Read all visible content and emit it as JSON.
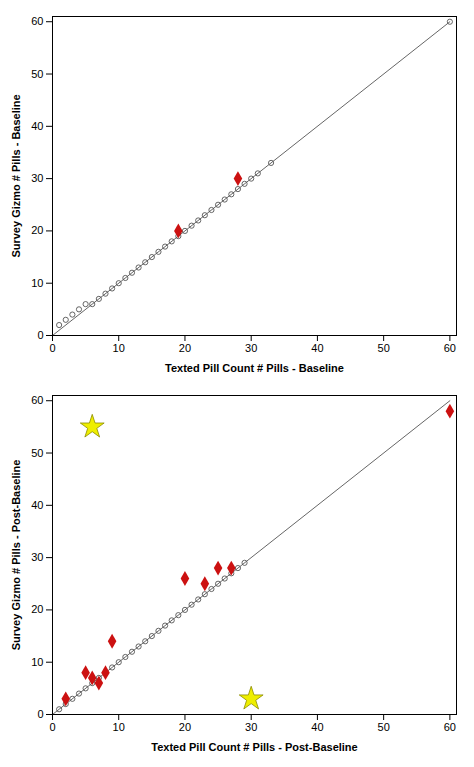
{
  "chart_data": [
    {
      "type": "scatter",
      "xlabel": "Texted Pill Count # Pills - Baseline",
      "ylabel": "Survey Gizmo # Pills - Baseline",
      "xlim": [
        0,
        61
      ],
      "ylim": [
        0,
        61
      ],
      "xticks": [
        0,
        10,
        20,
        30,
        40,
        50,
        60
      ],
      "yticks": [
        0,
        10,
        20,
        30,
        40,
        50,
        60
      ],
      "grid": false,
      "series": [
        {
          "type": "line",
          "color": "#666666",
          "x": [
            0,
            60
          ],
          "y": [
            0,
            60
          ]
        },
        {
          "type": "scatter",
          "marker": "circle",
          "color": "#555555",
          "x": [
            1,
            2,
            3,
            4,
            5,
            6,
            7,
            8,
            9,
            10,
            11,
            12,
            13,
            14,
            15,
            16,
            17,
            18,
            19,
            20,
            21,
            22,
            23,
            24,
            25,
            26,
            27,
            28,
            29,
            30,
            31,
            33,
            60
          ],
          "y": [
            2,
            3,
            4,
            5,
            6,
            6,
            7,
            8,
            9,
            10,
            11,
            12,
            13,
            14,
            15,
            16,
            17,
            18,
            19,
            20,
            21,
            22,
            23,
            24,
            25,
            26,
            27,
            28,
            29,
            30,
            31,
            33,
            60
          ]
        },
        {
          "type": "scatter",
          "marker": "diamond",
          "color": "#cc1111",
          "x": [
            19,
            28
          ],
          "y": [
            20,
            30
          ]
        }
      ]
    },
    {
      "type": "scatter",
      "xlabel": "Texted Pill Count # Pills - Post-Baseline",
      "ylabel": "Survey Gizmo # Pills - Post-Baseline",
      "xlim": [
        0,
        61
      ],
      "ylim": [
        0,
        61
      ],
      "xticks": [
        0,
        10,
        20,
        30,
        40,
        50,
        60
      ],
      "yticks": [
        0,
        10,
        20,
        30,
        40,
        50,
        60
      ],
      "grid": false,
      "series": [
        {
          "type": "line",
          "color": "#666666",
          "x": [
            0,
            60
          ],
          "y": [
            0,
            60
          ]
        },
        {
          "type": "scatter",
          "marker": "circle",
          "color": "#555555",
          "x": [
            1,
            2,
            3,
            4,
            5,
            6,
            7,
            8,
            9,
            10,
            11,
            12,
            13,
            14,
            15,
            16,
            17,
            18,
            19,
            20,
            21,
            22,
            23,
            24,
            25,
            26,
            27,
            28,
            29
          ],
          "y": [
            1,
            2,
            3,
            4,
            5,
            6,
            7,
            8,
            9,
            10,
            11,
            12,
            13,
            14,
            15,
            16,
            17,
            18,
            19,
            20,
            21,
            22,
            23,
            24,
            25,
            26,
            27,
            28,
            29
          ]
        },
        {
          "type": "scatter",
          "marker": "diamond",
          "color": "#cc1111",
          "x": [
            2,
            5,
            6,
            7,
            8,
            9,
            20,
            23,
            25,
            27,
            60
          ],
          "y": [
            3,
            8,
            7,
            6,
            8,
            14,
            26,
            25,
            28,
            28,
            58
          ]
        },
        {
          "type": "scatter",
          "marker": "star",
          "color": "#eeee00",
          "x": [
            6,
            30
          ],
          "y": [
            55,
            3
          ]
        }
      ]
    }
  ]
}
